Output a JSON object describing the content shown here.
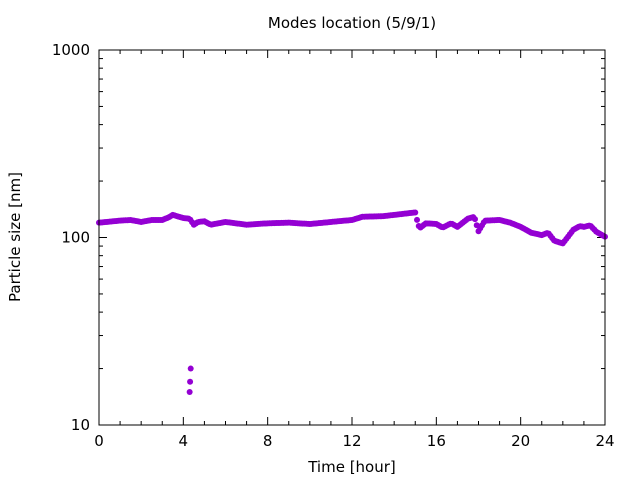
{
  "chart_data": {
    "type": "scatter",
    "title": "Modes location (5/9/1)",
    "xlabel": "Time [hour]",
    "ylabel": "Particle size [nm]",
    "xlim": [
      0,
      24
    ],
    "ylim": [
      10,
      1000
    ],
    "yscale": "log",
    "grid": false,
    "marker_color": "#9400d3",
    "x_ticks": [
      0,
      4,
      8,
      12,
      16,
      20,
      24
    ],
    "y_ticks": [
      10,
      100,
      1000
    ],
    "outliers": [
      {
        "x": 4.35,
        "y": 20.0
      },
      {
        "x": 4.32,
        "y": 17.0
      },
      {
        "x": 4.3,
        "y": 15.0
      }
    ],
    "series_profile": [
      {
        "x": 0.0,
        "y": 120
      },
      {
        "x": 1.0,
        "y": 123
      },
      {
        "x": 1.5,
        "y": 124
      },
      {
        "x": 2.0,
        "y": 121
      },
      {
        "x": 2.5,
        "y": 124
      },
      {
        "x": 3.0,
        "y": 124
      },
      {
        "x": 3.3,
        "y": 128
      },
      {
        "x": 3.5,
        "y": 132
      },
      {
        "x": 4.0,
        "y": 127
      },
      {
        "x": 4.3,
        "y": 126
      },
      {
        "x": 4.5,
        "y": 117
      },
      {
        "x": 4.7,
        "y": 121
      },
      {
        "x": 5.0,
        "y": 122
      },
      {
        "x": 5.3,
        "y": 117
      },
      {
        "x": 6.0,
        "y": 121
      },
      {
        "x": 7.0,
        "y": 117
      },
      {
        "x": 8.0,
        "y": 119
      },
      {
        "x": 9.0,
        "y": 120
      },
      {
        "x": 10.0,
        "y": 118
      },
      {
        "x": 11.0,
        "y": 121
      },
      {
        "x": 12.0,
        "y": 124
      },
      {
        "x": 12.5,
        "y": 129
      },
      {
        "x": 13.5,
        "y": 130
      },
      {
        "x": 14.5,
        "y": 134
      },
      {
        "x": 15.0,
        "y": 136
      },
      {
        "x": 15.1,
        "y": 122
      },
      {
        "x": 15.2,
        "y": 112
      },
      {
        "x": 15.5,
        "y": 119
      },
      {
        "x": 16.0,
        "y": 118
      },
      {
        "x": 16.3,
        "y": 113
      },
      {
        "x": 16.7,
        "y": 119
      },
      {
        "x": 17.0,
        "y": 114
      },
      {
        "x": 17.5,
        "y": 126
      },
      {
        "x": 17.8,
        "y": 129
      },
      {
        "x": 18.0,
        "y": 108
      },
      {
        "x": 18.3,
        "y": 123
      },
      {
        "x": 19.0,
        "y": 124
      },
      {
        "x": 19.5,
        "y": 120
      },
      {
        "x": 20.0,
        "y": 114
      },
      {
        "x": 20.5,
        "y": 106
      },
      {
        "x": 21.0,
        "y": 103
      },
      {
        "x": 21.3,
        "y": 106
      },
      {
        "x": 21.6,
        "y": 96
      },
      {
        "x": 22.0,
        "y": 93
      },
      {
        "x": 22.5,
        "y": 110
      },
      {
        "x": 22.8,
        "y": 115
      },
      {
        "x": 23.0,
        "y": 114
      },
      {
        "x": 23.3,
        "y": 116
      },
      {
        "x": 23.6,
        "y": 107
      },
      {
        "x": 24.0,
        "y": 101
      }
    ]
  }
}
